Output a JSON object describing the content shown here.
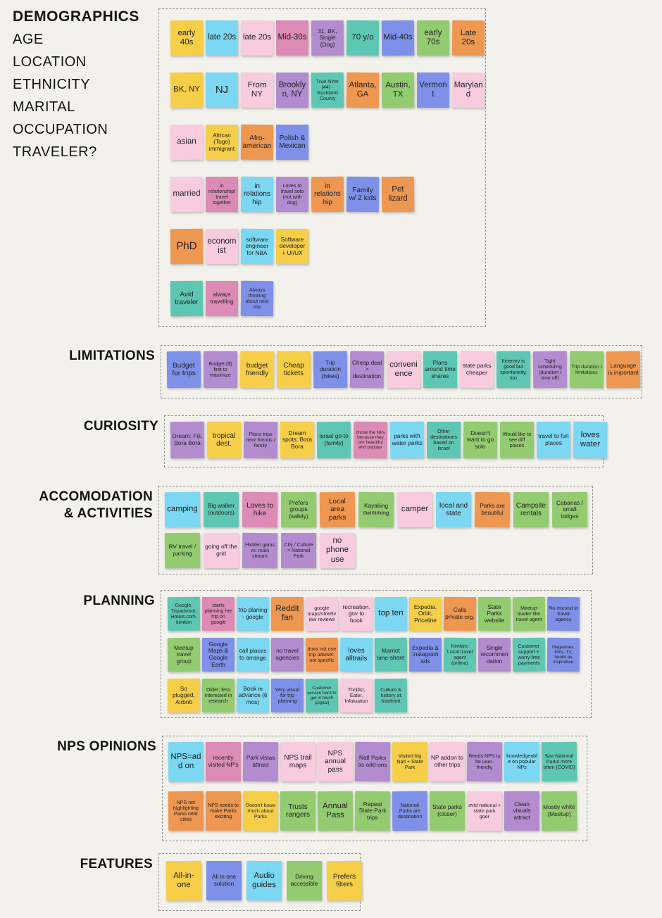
{
  "palette": {
    "yellow": "#F6CE47",
    "cyan": "#7BD7F2",
    "pink": "#F8CBDF",
    "mauve": "#DC8BB6",
    "purple": "#B38CD0",
    "teal": "#5EC7B3",
    "periwinkle": "#7E90E8",
    "green": "#93CB70",
    "orange": "#EE9751"
  },
  "side_labels": {
    "title": "DEMOGRAPHICS",
    "items": [
      "AGE",
      "LOCATION",
      "ETHNICITY",
      "MARITAL",
      "OCCUPATION",
      "TRAVELER?"
    ]
  },
  "sections": [
    {
      "id": "demographics",
      "label": null,
      "rows": [
        [
          {
            "text": "early 40s",
            "color": "yellow"
          },
          {
            "text": "late 20s",
            "color": "cyan"
          },
          {
            "text": "late 20s",
            "color": "pink"
          },
          {
            "text": "Mid-30s",
            "color": "mauve"
          },
          {
            "text": "31, BK, Single (Dog)",
            "color": "purple"
          },
          {
            "text": "70 y/o",
            "color": "teal"
          },
          {
            "text": "Mid-40s",
            "color": "periwinkle"
          },
          {
            "text": "early 70s",
            "color": "green"
          },
          {
            "text": "Late 20s",
            "color": "orange"
          }
        ],
        [
          {
            "text": "BK, NY",
            "color": "yellow"
          },
          {
            "text": "NJ",
            "color": "cyan"
          },
          {
            "text": "From NY",
            "color": "pink"
          },
          {
            "text": "Brooklyn, NY",
            "color": "purple"
          },
          {
            "text": "True NYer (44) - Rockland County",
            "color": "teal"
          },
          {
            "text": "Atlanta, GA",
            "color": "orange"
          },
          {
            "text": "Austin, TX",
            "color": "green"
          },
          {
            "text": "Vermont",
            "color": "periwinkle"
          },
          {
            "text": "Maryland",
            "color": "pink"
          }
        ],
        [
          {
            "text": "asian",
            "color": "pink"
          },
          {
            "text": "African (Togo) immigrant",
            "color": "yellow"
          },
          {
            "text": "Afro-american",
            "color": "orange"
          },
          {
            "text": "Polish & Mexican",
            "color": "periwinkle"
          }
        ],
        [
          {
            "text": "married",
            "color": "pink"
          },
          {
            "text": "in relationship/ travel together",
            "color": "mauve"
          },
          {
            "text": "in relationship",
            "color": "cyan"
          },
          {
            "text": "Loves to travel solo (not with dog)",
            "color": "purple"
          },
          {
            "text": "in relationship",
            "color": "orange"
          },
          {
            "text": "Family w/ 2 kids",
            "color": "periwinkle"
          },
          {
            "text": "Pet lizard",
            "color": "orange"
          }
        ],
        [
          {
            "text": "PhD",
            "color": "orange"
          },
          {
            "text": "economist",
            "color": "pink"
          },
          {
            "text": "software engineer for NBA",
            "color": "cyan"
          },
          {
            "text": "Software developer + UI/UX",
            "color": "yellow"
          }
        ],
        [
          {
            "text": "Avid traveler",
            "color": "teal"
          },
          {
            "text": "always travelling",
            "color": "mauve"
          },
          {
            "text": "Always thinking about next trip",
            "color": "periwinkle"
          }
        ]
      ]
    },
    {
      "id": "limitations",
      "label": "LIMITATIONS",
      "rows": [
        [
          {
            "text": "Budget for trips",
            "color": "periwinkle"
          },
          {
            "text": "Budget ($) first to maximize",
            "color": "purple"
          },
          {
            "text": "budget friendly",
            "color": "yellow"
          },
          {
            "text": "Cheap tickets",
            "color": "yellow"
          },
          {
            "text": "Trip duration (hikes)",
            "color": "periwinkle"
          },
          {
            "text": "Cheap deal > destination",
            "color": "purple"
          },
          {
            "text": "convenience",
            "color": "pink"
          },
          {
            "text": "Plans around time shares",
            "color": "teal"
          },
          {
            "text": "state parks cheaper",
            "color": "pink"
          },
          {
            "text": "Itinerary is good but spontaneity, too",
            "color": "teal"
          },
          {
            "text": "Tight scheduling (duration / time off)",
            "color": "purple"
          },
          {
            "text": "Trip duration / limitations",
            "color": "green"
          },
          {
            "text": "Language is important",
            "color": "orange"
          }
        ]
      ]
    },
    {
      "id": "curiosity",
      "label": "CURIOSITY",
      "rows": [
        [
          {
            "text": "Dream: Fiji, Bora Bora",
            "color": "purple"
          },
          {
            "text": "tropical dest.",
            "color": "yellow"
          },
          {
            "text": "Plans trips near friends / family",
            "color": "purple"
          },
          {
            "text": "Dream spots: Bora Bora",
            "color": "yellow"
          },
          {
            "text": "Israel go-to (family)",
            "color": "teal"
          },
          {
            "text": "chose the NPs because they are beautiful and popular",
            "color": "mauve"
          },
          {
            "text": "parks with water parks",
            "color": "cyan"
          },
          {
            "text": "Other destinations based on Israel",
            "color": "teal"
          },
          {
            "text": "Doesn't want to go solo",
            "color": "green"
          },
          {
            "text": "Would like to see diff places",
            "color": "green"
          },
          {
            "text": "travel to fun places",
            "color": "cyan"
          },
          {
            "text": "loves water",
            "color": "cyan"
          }
        ]
      ]
    },
    {
      "id": "accommodation",
      "label": "ACCOMODATION\n& ACTIVITIES",
      "rows": [
        [
          {
            "text": "camping",
            "color": "cyan"
          },
          {
            "text": "Big walker (outdoors)",
            "color": "teal"
          },
          {
            "text": "Loves to hike",
            "color": "mauve"
          },
          {
            "text": "Prefers groups (safety)",
            "color": "green"
          },
          {
            "text": "Local area parks",
            "color": "orange"
          },
          {
            "text": "Kayaking swimming",
            "color": "green"
          },
          {
            "text": "camper",
            "color": "pink"
          },
          {
            "text": "local and state",
            "color": "cyan"
          },
          {
            "text": "Parks are beautiful",
            "color": "orange"
          },
          {
            "text": "Campsite rentals",
            "color": "green"
          },
          {
            "text": "Cabanas / small lodges",
            "color": "green"
          }
        ],
        [
          {
            "text": "RV travel / parking",
            "color": "green"
          },
          {
            "text": "going off the grid",
            "color": "pink"
          },
          {
            "text": "Hidden gems vs. main stream",
            "color": "purple"
          },
          {
            "text": "City / Culture > National Park",
            "color": "purple"
          },
          {
            "text": "no phone use",
            "color": "pink"
          }
        ]
      ]
    },
    {
      "id": "planning",
      "label": "PLANNING",
      "rows": [
        [
          {
            "text": "Google, Tripadvisor, Hotels.com, kimkim",
            "color": "teal"
          },
          {
            "text": "starts planning her trip on google",
            "color": "mauve"
          },
          {
            "text": "trip planing - google",
            "color": "cyan"
          },
          {
            "text": "Reddit fan",
            "color": "orange"
          },
          {
            "text": "google maps/streetview reviews",
            "color": "pink"
          },
          {
            "text": "recreation.gov to book",
            "color": "pink"
          },
          {
            "text": "top ten",
            "color": "cyan"
          },
          {
            "text": "Expedia, Orbit, Priceline",
            "color": "yellow"
          },
          {
            "text": "Calls private org.",
            "color": "orange"
          },
          {
            "text": "State Parks website",
            "color": "green"
          },
          {
            "text": "Meetup leader like travel agent",
            "color": "green"
          },
          {
            "text": "No interest in travel agency",
            "color": "periwinkle"
          }
        ],
        [
          {
            "text": "Meetup travel group",
            "color": "green"
          },
          {
            "text": "Google Maps & Google Earth",
            "color": "periwinkle"
          },
          {
            "text": "call places to arrange",
            "color": "cyan"
          },
          {
            "text": "no travel agencies",
            "color": "purple"
          },
          {
            "text": "does not use trip adviser, not specific",
            "color": "orange"
          },
          {
            "text": "loves alltrails",
            "color": "cyan"
          },
          {
            "text": "Marriot time-share",
            "color": "teal"
          },
          {
            "text": "Expedia & Instagram ads",
            "color": "periwinkle"
          },
          {
            "text": "Kimkim: Local travel agent (online)",
            "color": "teal"
          },
          {
            "text": "Single recommendation",
            "color": "purple"
          },
          {
            "text": "Customer support + worry-free payments",
            "color": "teal"
          },
          {
            "text": "Magazines, films, TV, books as inspiration",
            "color": "periwinkle"
          }
        ],
        [
          {
            "text": "So plugged, Airbnb",
            "color": "yellow"
          },
          {
            "text": "Older; less interested in research",
            "color": "green"
          },
          {
            "text": "Book in advance (6 mos)",
            "color": "cyan"
          },
          {
            "text": "Very visual for trip planning",
            "color": "periwinkle"
          },
          {
            "text": "Customer service hard to get in touch (digital)",
            "color": "teal"
          },
          {
            "text": "Thrillist, Eater, Infatuation",
            "color": "pink"
          },
          {
            "text": "Culture & history at forefront",
            "color": "teal"
          }
        ]
      ]
    },
    {
      "id": "nps",
      "label": "NPS OPINIONS",
      "rows": [
        [
          {
            "text": "NPS=add on",
            "color": "cyan"
          },
          {
            "text": "recently visited NP's",
            "color": "mauve"
          },
          {
            "text": "Park vistas attract",
            "color": "purple"
          },
          {
            "text": "NPS trail maps",
            "color": "pink"
          },
          {
            "text": "NPS annual pass",
            "color": "pink"
          },
          {
            "text": "Natl Parks as add-ons",
            "color": "purple"
          },
          {
            "text": "Visited big Natl + State Park",
            "color": "yellow"
          },
          {
            "text": "NP addon to other trips",
            "color": "pink"
          },
          {
            "text": "Needs NPS to be user-friendly",
            "color": "purple"
          },
          {
            "text": "knowledgeable on popular NPs",
            "color": "cyan"
          },
          {
            "text": "See National Parks more often (COVID)",
            "color": "teal"
          }
        ],
        [
          {
            "text": "NPS not highlighting Parks near cities",
            "color": "orange"
          },
          {
            "text": "NPS needs to make Parks exciting",
            "color": "orange"
          },
          {
            "text": "Doesn't know much about Parks",
            "color": "yellow"
          },
          {
            "text": "Trusts rangers",
            "color": "green"
          },
          {
            "text": "Annual Pass",
            "color": "green"
          },
          {
            "text": "Repeat State Park trips",
            "color": "green"
          },
          {
            "text": "National Parks are destination",
            "color": "periwinkle"
          },
          {
            "text": "State parks (closer)",
            "color": "green"
          },
          {
            "text": "avid national + state park goer",
            "color": "pink"
          },
          {
            "text": "Clean visuals attract",
            "color": "purple"
          },
          {
            "text": "Mostly white (Meetup)",
            "color": "green"
          }
        ]
      ]
    },
    {
      "id": "features",
      "label": "FEATURES",
      "rows": [
        [
          {
            "text": "All-in-one",
            "color": "yellow"
          },
          {
            "text": "All in one solution",
            "color": "periwinkle"
          },
          {
            "text": "Audio guides",
            "color": "cyan"
          },
          {
            "text": "Driving accessible",
            "color": "green"
          },
          {
            "text": "Prefers filters",
            "color": "yellow"
          }
        ]
      ]
    }
  ]
}
